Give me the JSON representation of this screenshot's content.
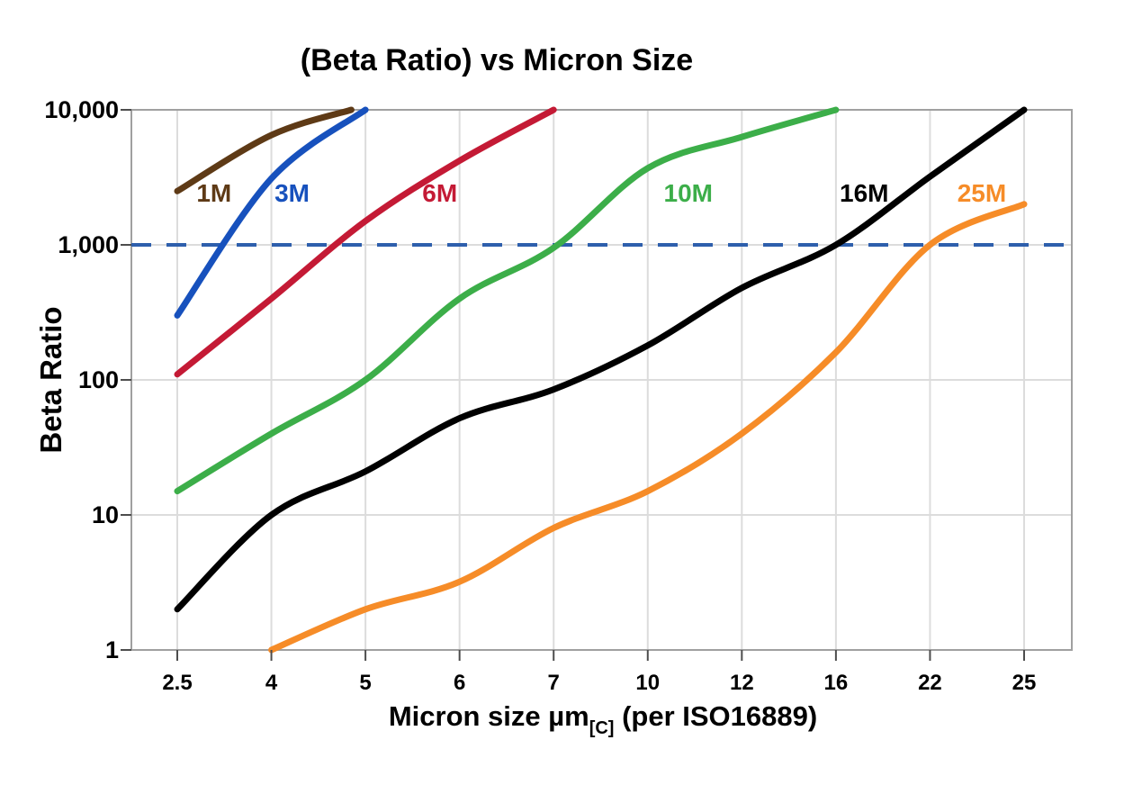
{
  "title": "(Beta Ratio) vs Micron Size",
  "axes": {
    "y_label": "Beta Ratio",
    "x_label_main": "Micron size µm",
    "x_label_subscript": "[C]",
    "x_label_suffix": " (per ISO16889)"
  },
  "chart_data": {
    "type": "line",
    "title": "(Beta Ratio) vs Micron Size",
    "xlabel": "Micron size µm[C] (per ISO16889)",
    "ylabel": "Beta Ratio",
    "x_scale": "categorical-even-spacing",
    "y_scale": "log",
    "ylim": [
      1,
      10000
    ],
    "grid": true,
    "legend": "inline-colored-labels",
    "categories": [
      "2.5",
      "4",
      "5",
      "6",
      "7",
      "10",
      "12",
      "16",
      "22",
      "25"
    ],
    "category_values": [
      2.5,
      4,
      5,
      6,
      7,
      10,
      12,
      16,
      22,
      25
    ],
    "y_ticks": [
      {
        "value": 10000,
        "label": "10,000"
      },
      {
        "value": 1000,
        "label": "1,000"
      },
      {
        "value": 100,
        "label": "100"
      },
      {
        "value": 10,
        "label": "10"
      },
      {
        "value": 1,
        "label": "1"
      }
    ],
    "reference_line": {
      "value": 1000,
      "style": "dashed",
      "color": "#2E5FAC"
    },
    "series": [
      {
        "name": "1M",
        "color": "#5E3A16",
        "values": [
          2500,
          6500,
          null,
          null,
          null,
          null,
          null,
          null,
          null,
          null
        ],
        "top_exit_micron": 4.85,
        "label_pos_idx": 0.39,
        "label_value": 2400
      },
      {
        "name": "3M",
        "color": "#1751BD",
        "values": [
          300,
          3100,
          10000,
          null,
          null,
          null,
          null,
          null,
          null,
          null
        ],
        "top_exit_micron": null,
        "label_pos_idx": 1.22,
        "label_value": 2400
      },
      {
        "name": "6M",
        "color": "#C41A35",
        "values": [
          110,
          400,
          1500,
          4200,
          10000,
          null,
          null,
          null,
          null,
          null
        ],
        "top_exit_micron": null,
        "label_pos_idx": 2.79,
        "label_value": 2400
      },
      {
        "name": "10M",
        "color": "#3CAE49",
        "values": [
          15,
          40,
          100,
          400,
          950,
          3700,
          6300,
          10000,
          null,
          null
        ],
        "top_exit_micron": null,
        "label_pos_idx": 5.43,
        "label_value": 2400
      },
      {
        "name": "16M",
        "color": "#000000",
        "values": [
          2,
          10,
          21,
          52,
          85,
          180,
          480,
          1000,
          3200,
          10000
        ],
        "top_exit_micron": null,
        "label_pos_idx": 7.3,
        "label_value": 2400
      },
      {
        "name": "25M",
        "color": "#F68C28",
        "values": [
          null,
          1,
          2,
          3.2,
          8,
          15,
          40,
          160,
          1000,
          2000
        ],
        "top_exit_micron": null,
        "label_pos_idx": 8.55,
        "label_value": 2400
      }
    ]
  },
  "colors": {
    "background": "#FFFFFF",
    "gridline": "#DCDCDC",
    "plot_border": "#A0A0A0",
    "tick": "#4D4D4D",
    "text": "#000000",
    "reference_dash": "#2E5FAC"
  }
}
